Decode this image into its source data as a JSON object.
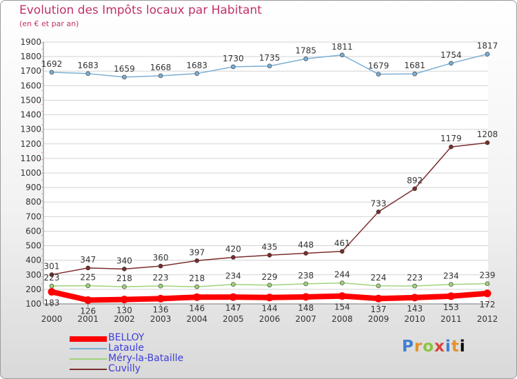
{
  "title": "Evolution des Impôts locaux par Habitant",
  "subtitle": "(en € et par an)",
  "logo": [
    "P",
    "r",
    "o",
    "x",
    "i",
    "t",
    "i"
  ],
  "chart_data": {
    "type": "line",
    "x": [
      "2000",
      "2001",
      "2002",
      "2003",
      "2004",
      "2005",
      "2006",
      "2007",
      "2008",
      "2009",
      "2010",
      "2011",
      "2012"
    ],
    "ylim": [
      100,
      1900
    ],
    "yticks": [
      100,
      200,
      300,
      400,
      500,
      600,
      700,
      800,
      900,
      1000,
      1100,
      1200,
      1300,
      1400,
      1500,
      1600,
      1700,
      1800,
      1900
    ],
    "grid": "horizontal",
    "legend": "bottom-left",
    "series": [
      {
        "name": "BELLOY",
        "color": "#ff0000",
        "width": "thick",
        "values": [
          183,
          126,
          130,
          136,
          146,
          147,
          144,
          148,
          154,
          137,
          143,
          153,
          172
        ],
        "labels": [
          "183",
          "126",
          "130",
          "136",
          "146",
          "147",
          "144",
          "148",
          "154",
          "137",
          "143",
          "153",
          "172"
        ]
      },
      {
        "name": "Lataule",
        "color": "#7aaed3",
        "values": [
          1692,
          1683,
          1659,
          1668,
          1683,
          1730,
          1735,
          1785,
          1811,
          1679,
          1681,
          1754,
          1817
        ],
        "labels": [
          "1692",
          "1683",
          "1659",
          "1668",
          "1683",
          "1730",
          "1735",
          "1785",
          "1811",
          "1679",
          "1681",
          "1754",
          "1817"
        ]
      },
      {
        "name": "Méry-la-Bataille",
        "color": "#9ed279",
        "values": [
          223,
          225,
          218,
          223,
          218,
          234,
          229,
          238,
          244,
          224,
          223,
          234,
          239
        ],
        "labels": [
          "223",
          "225",
          "218",
          "223",
          "218",
          "234",
          "229",
          "238",
          "244",
          "224",
          "223",
          "234",
          "239"
        ]
      },
      {
        "name": "Cuvilly",
        "color": "#7a2c2c",
        "values": [
          301,
          347,
          340,
          360,
          397,
          420,
          435,
          448,
          461,
          733,
          892,
          1179,
          1208
        ],
        "labels": [
          "301",
          "347",
          "340",
          "360",
          "397",
          "420",
          "435",
          "448",
          "461",
          "733",
          "892",
          "1179",
          "1208"
        ]
      }
    ]
  }
}
